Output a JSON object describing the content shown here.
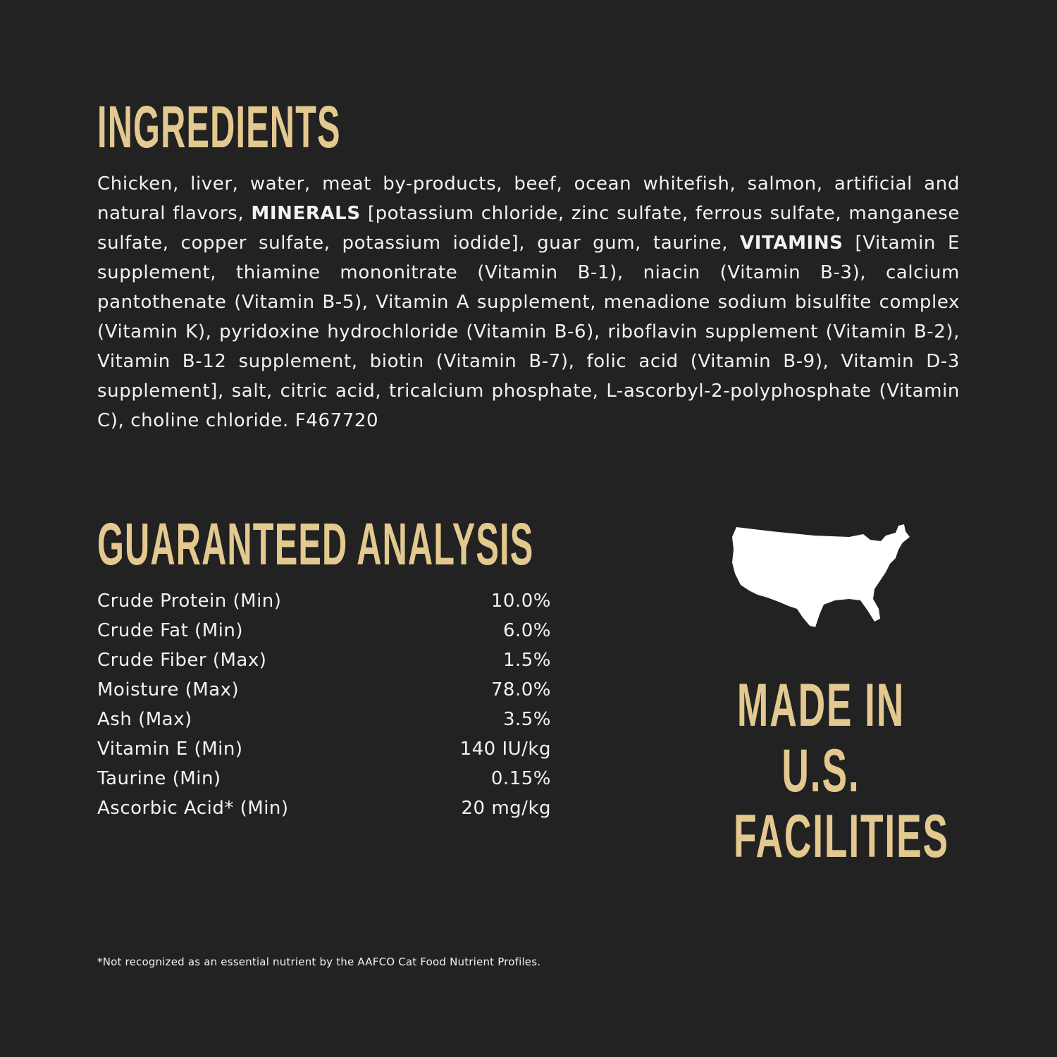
{
  "colors": {
    "background": "#222222",
    "accent": "#e3c98f",
    "text": "#f2f2f2"
  },
  "ingredients": {
    "title": "INGREDIENTS",
    "segments": [
      {
        "text": "Chicken, liver, water, meat by-products, beef, ocean whitefish, salmon, artificial and natural flavors, ",
        "bold": false
      },
      {
        "text": "MINERALS",
        "bold": true
      },
      {
        "text": " [potassium chloride, zinc sulfate, ferrous sulfate, manganese sulfate, copper sulfate, potassium iodide], guar gum, taurine, ",
        "bold": false
      },
      {
        "text": "VITAMINS",
        "bold": true
      },
      {
        "text": " [Vitamin E supplement, thiamine mononitrate (Vitamin B-1), niacin (Vitamin B-3), calcium pantothenate (Vitamin B-5), Vitamin A supplement, menadione sodium bisulfite complex (Vitamin K), pyridoxine hydrochloride (Vitamin B-6), riboflavin supplement (Vitamin B-2), Vitamin B-12 supplement, biotin (Vitamin B-7), folic acid (Vitamin B-9), Vitamin D-3 supplement], salt, citric acid, tricalcium phosphate, L-ascorbyl-2-polyphosphate (Vitamin C), choline chloride. F467720",
        "bold": false
      }
    ]
  },
  "analysis": {
    "title": "GUARANTEED ANALYSIS",
    "rows": [
      {
        "label": "Crude Protein (Min)",
        "value": "10.0%"
      },
      {
        "label": "Crude Fat (Min)",
        "value": "6.0%"
      },
      {
        "label": "Crude Fiber (Max)",
        "value": "1.5%"
      },
      {
        "label": "Moisture (Max)",
        "value": "78.0%"
      },
      {
        "label": "Ash (Max)",
        "value": "3.5%"
      },
      {
        "label": "Vitamin E (Min)",
        "value": "140 IU/kg"
      },
      {
        "label": "Taurine (Min)",
        "value": "0.15%"
      },
      {
        "label": "Ascorbic Acid* (Min)",
        "value": "20 mg/kg"
      }
    ]
  },
  "made_in": {
    "icon": "usa-map-icon",
    "lines": [
      "MADE IN",
      "U.S.",
      "FACILITIES"
    ]
  },
  "footnote": "*Not recognized as an essential nutrient by the AAFCO Cat Food Nutrient Profiles."
}
